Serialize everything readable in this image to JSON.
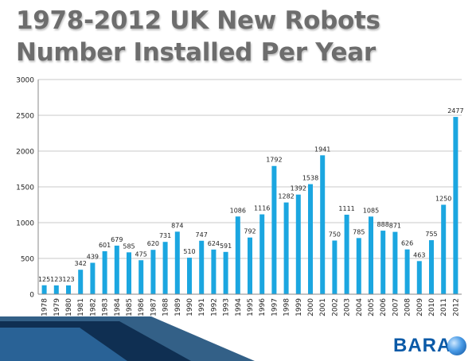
{
  "title": "1978-2012 UK New Robots Number Installed Per Year",
  "logo_text": "BARA",
  "chart_data": {
    "type": "bar",
    "title": "1978-2012 UK New Robots Number Installed Per Year",
    "xlabel": "",
    "ylabel": "",
    "ylim": [
      0,
      3000
    ],
    "yticks": [
      "0",
      "500",
      "1000",
      "1500",
      "2000",
      "2500",
      "3000"
    ],
    "grid": true,
    "legend": "none",
    "bar_color": "#1ba6e0",
    "categories": [
      "1978",
      "1979",
      "1980",
      "1981",
      "1982",
      "1983",
      "1984",
      "1985",
      "1986",
      "1987",
      "1988",
      "1989",
      "1990",
      "1991",
      "1992",
      "1993",
      "1994",
      "1995",
      "1996",
      "1997",
      "1998",
      "1999",
      "2000",
      "2001",
      "2002",
      "2003",
      "2004",
      "2005",
      "2006",
      "2007",
      "2008",
      "2009",
      "2010",
      "2011",
      "2012"
    ],
    "values": [
      125,
      123,
      123,
      342,
      439,
      601,
      679,
      585,
      475,
      620,
      731,
      874,
      510,
      747,
      624,
      591,
      1086,
      792,
      1116,
      1792,
      1282,
      1392,
      1538,
      1941,
      750,
      1111,
      785,
      1085,
      888,
      871,
      626,
      463,
      755,
      1250,
      2477
    ],
    "labels": [
      "125",
      "123",
      "123",
      "342",
      "439",
      "601",
      "679",
      "585",
      "475",
      "620",
      "731",
      "874",
      "510",
      "747",
      "624",
      "591",
      "1086",
      "792",
      "1116",
      "1792",
      "1282",
      "1392",
      "1538",
      "1941",
      "750",
      "1111",
      "785",
      "1085",
      "888",
      "871",
      "626",
      "463",
      "755",
      "1250",
      "2477"
    ]
  }
}
